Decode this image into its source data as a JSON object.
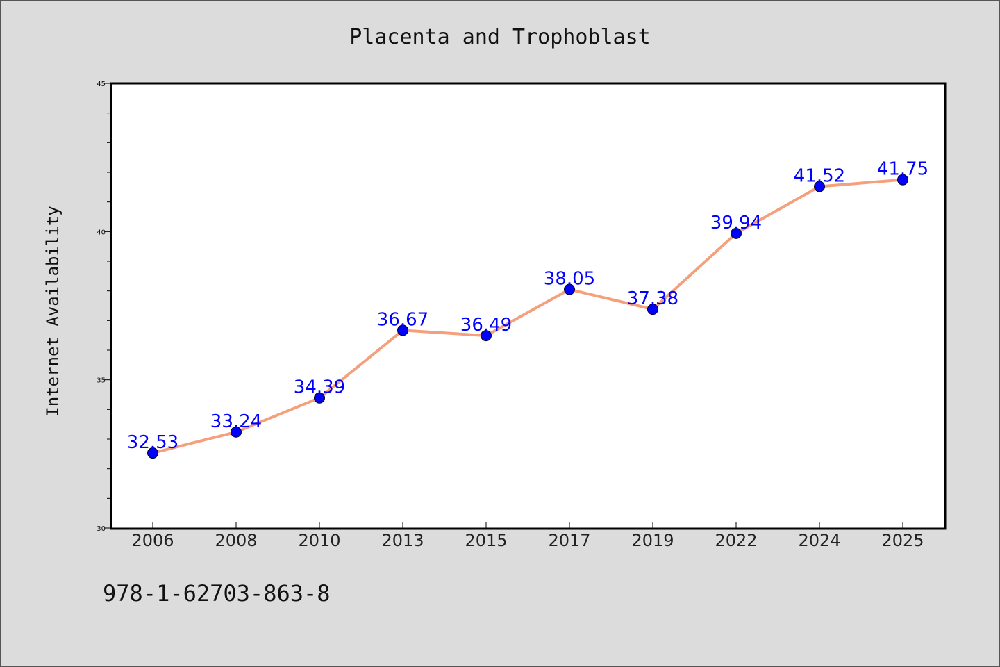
{
  "chart_data": {
    "type": "line",
    "title": "Placenta and Trophoblast",
    "xlabel": "",
    "ylabel": "Internet Availability",
    "categories": [
      "2006",
      "2008",
      "2010",
      "2013",
      "2015",
      "2017",
      "2019",
      "2022",
      "2024",
      "2025"
    ],
    "series": [
      {
        "values": [
          32.53,
          33.24,
          34.39,
          36.67,
          36.49,
          38.05,
          37.38,
          39.94,
          41.52,
          41.75
        ],
        "labels": [
          "32.53",
          "33.24",
          "34.39",
          "36.67",
          "36.49",
          "38.05",
          "37.38",
          "39.94",
          "41.52",
          "41.75"
        ]
      }
    ],
    "ylim": [
      30,
      45
    ],
    "yticks": [
      "30",
      "35",
      "40",
      "45"
    ],
    "grid": false,
    "legend": "none",
    "colors": {
      "line": "#f4a07c",
      "marker": "#0000ff",
      "data_label": "#0000ff",
      "background": "#dcdcdc",
      "plot_background": "#ffffff"
    }
  },
  "footer": {
    "isbn": "978-1-62703-863-8"
  }
}
